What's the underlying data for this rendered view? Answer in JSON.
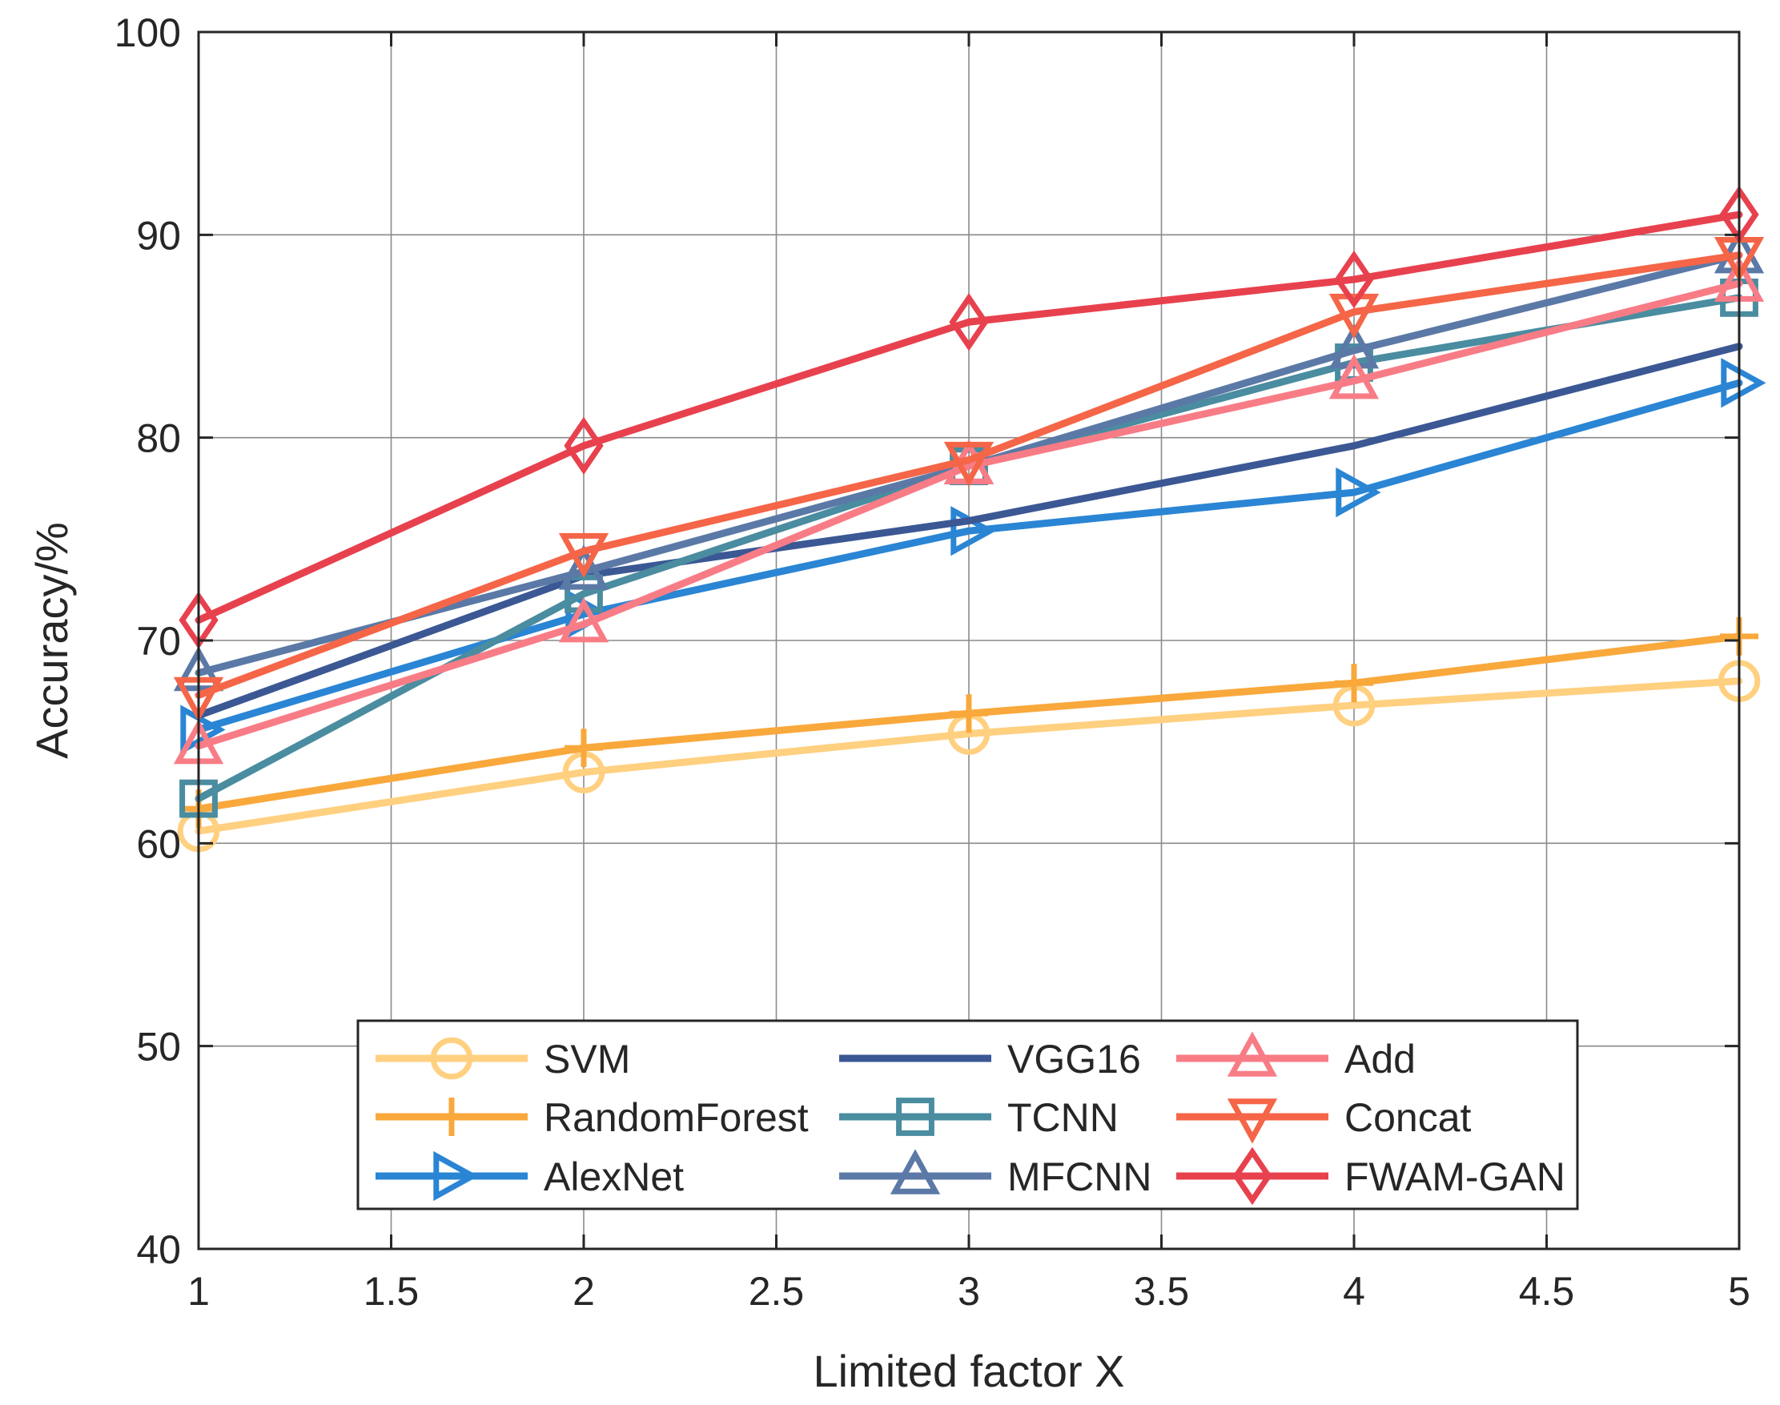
{
  "chart_data": {
    "type": "line",
    "title": "",
    "xlabel": "Limited factor X",
    "ylabel": "Accuracy/%",
    "xlim": [
      1,
      5
    ],
    "ylim": [
      40,
      100
    ],
    "xticks": [
      1,
      1.5,
      2,
      2.5,
      3,
      3.5,
      4,
      4.5,
      5
    ],
    "xtick_labels": [
      "1",
      "1.5",
      "2",
      "2.5",
      "3",
      "3.5",
      "4",
      "4.5",
      "5"
    ],
    "yticks": [
      40,
      50,
      60,
      70,
      80,
      90,
      100
    ],
    "ytick_labels": [
      "40",
      "50",
      "60",
      "70",
      "80",
      "90",
      "100"
    ],
    "grid": true,
    "legend_position": "bottom-center",
    "x": [
      1,
      2,
      3,
      4,
      5
    ],
    "series": [
      {
        "name": "SVM",
        "color": "#FFD080",
        "marker": "circle",
        "values": [
          60.6,
          63.5,
          65.4,
          66.8,
          68.0
        ]
      },
      {
        "name": "RandomForest",
        "color": "#F9A83C",
        "marker": "plus",
        "values": [
          61.7,
          64.7,
          66.4,
          67.9,
          70.2
        ]
      },
      {
        "name": "AlexNet",
        "color": "#2A85D4",
        "marker": "triangle-right",
        "values": [
          65.6,
          71.3,
          75.4,
          77.3,
          82.7
        ]
      },
      {
        "name": "VGG16",
        "color": "#3B5894",
        "marker": "none",
        "values": [
          66.3,
          73.2,
          75.9,
          79.6,
          84.5
        ]
      },
      {
        "name": "TCNN",
        "color": "#4A8CA0",
        "marker": "square",
        "values": [
          62.2,
          72.3,
          78.6,
          83.7,
          86.9
        ]
      },
      {
        "name": "MFCNN",
        "color": "#5B79A6",
        "marker": "triangle-up",
        "values": [
          68.4,
          73.4,
          78.6,
          84.3,
          89.0
        ]
      },
      {
        "name": "Add",
        "color": "#F87C86",
        "marker": "triangle-up",
        "values": [
          64.8,
          70.8,
          78.6,
          82.8,
          87.6
        ]
      },
      {
        "name": "Concat",
        "color": "#F56547",
        "marker": "triangle-down",
        "values": [
          67.3,
          74.4,
          78.9,
          86.2,
          89.0
        ]
      },
      {
        "name": "FWAM-GAN",
        "color": "#E8414E",
        "marker": "diamond",
        "values": [
          71.0,
          79.6,
          85.7,
          87.8,
          91.0
        ]
      }
    ]
  }
}
